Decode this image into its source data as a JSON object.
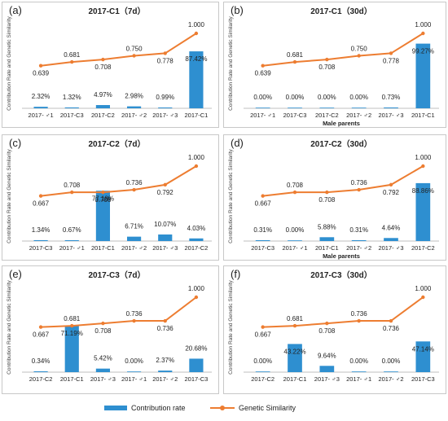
{
  "colors": {
    "bar": "#2e8fd0",
    "line": "#ed7d31"
  },
  "legend": {
    "bar_label": "Contribution rate",
    "line_label": "Genetic Similarity"
  },
  "chart_data": [
    {
      "panel": "(a)",
      "title": "2017-C1（7d）",
      "type": "bar+line",
      "ylabel": "Contribution Rate and Genetic Similarity",
      "xlabel": "",
      "categories": [
        "2017- ♂1",
        "2017-C3",
        "2017-C2",
        "2017- ♂2",
        "2017- ♂3",
        "2017-C1"
      ],
      "series": [
        {
          "name": "Contribution rate",
          "type": "bar",
          "values": [
            2.32,
            1.32,
            4.97,
            2.98,
            0.99,
            87.42
          ],
          "labels": [
            "2.32%",
            "1.32%",
            "4.97%",
            "2.98%",
            "0.99%",
            "87.42%"
          ]
        },
        {
          "name": "Genetic Similarity",
          "type": "line",
          "values": [
            0.639,
            0.681,
            0.708,
            0.75,
            0.778,
            1.0
          ],
          "labels": [
            "0.639",
            "0.681",
            "0.708",
            "0.750",
            "0.778",
            "1.000"
          ]
        }
      ]
    },
    {
      "panel": "(b)",
      "title": "2017-C1（30d）",
      "type": "bar+line",
      "ylabel": "Contribution Rate and Genetic Similarity",
      "xlabel": "Male parents",
      "categories": [
        "2017- ♂1",
        "2017-C3",
        "2017-C2",
        "2017- ♂2",
        "2017- ♂3",
        "2017-C1"
      ],
      "series": [
        {
          "name": "Contribution rate",
          "type": "bar",
          "values": [
            0.0,
            0.0,
            0.0,
            0.0,
            0.73,
            99.27
          ],
          "labels": [
            "0.00%",
            "0.00%",
            "0.00%",
            "0.00%",
            "0.73%",
            "99.27%"
          ]
        },
        {
          "name": "Genetic Similarity",
          "type": "line",
          "values": [
            0.639,
            0.681,
            0.708,
            0.75,
            0.778,
            1.0
          ],
          "labels": [
            "0.639",
            "0.681",
            "0.708",
            "0.750",
            "0.778",
            "1.000"
          ]
        }
      ]
    },
    {
      "panel": "(c)",
      "title": "2017-C2（7d）",
      "type": "bar+line",
      "ylabel": "Contribution Rate and Genetic Similarity",
      "xlabel": "",
      "categories": [
        "2017-C3",
        "2017- ♂1",
        "2017-C1",
        "2017- ♂2",
        "2017- ♂3",
        "2017-C2"
      ],
      "series": [
        {
          "name": "Contribution rate",
          "type": "bar",
          "values": [
            1.34,
            0.67,
            77.18,
            6.71,
            10.07,
            4.03
          ],
          "labels": [
            "1.34%",
            "0.67%",
            "77.18%",
            "6.71%",
            "10.07%",
            "4.03%"
          ]
        },
        {
          "name": "Genetic Similarity",
          "type": "line",
          "values": [
            0.667,
            0.708,
            0.708,
            0.736,
            0.792,
            1.0
          ],
          "labels": [
            "0.667",
            "0.708",
            "0.708",
            "0.736",
            "0.792",
            "1.000"
          ]
        }
      ]
    },
    {
      "panel": "(d)",
      "title": "2017-C2（30d）",
      "type": "bar+line",
      "ylabel": "Contribution Rate and Genetic Similarity",
      "xlabel": "Male parents",
      "categories": [
        "2017-C3",
        "2017- ♂1",
        "2017-C1",
        "2017- ♂2",
        "2017- ♂3",
        "2017-C2"
      ],
      "series": [
        {
          "name": "Contribution rate",
          "type": "bar",
          "values": [
            0.31,
            0.0,
            5.88,
            0.31,
            4.64,
            88.86
          ],
          "labels": [
            "0.31%",
            "0.00%",
            "5.88%",
            "0.31%",
            "4.64%",
            "88.86%"
          ]
        },
        {
          "name": "Genetic Similarity",
          "type": "line",
          "values": [
            0.667,
            0.708,
            0.708,
            0.736,
            0.792,
            1.0
          ],
          "labels": [
            "0.667",
            "0.708",
            "0.708",
            "0.736",
            "0.792",
            "1.000"
          ]
        }
      ]
    },
    {
      "panel": "(e)",
      "title": "2017-C3（7d）",
      "type": "bar+line",
      "ylabel": "Contribution Rate and Genetic Similarity",
      "xlabel": "",
      "categories": [
        "2017-C2",
        "2017-C1",
        "2017- ♂3",
        "2017- ♂1",
        "2017- ♂2",
        "2017-C3"
      ],
      "series": [
        {
          "name": "Contribution rate",
          "type": "bar",
          "values": [
            0.34,
            71.19,
            5.42,
            0.0,
            2.37,
            20.68
          ],
          "labels": [
            "0.34%",
            "71.19%",
            "5.42%",
            "0.00%",
            "2.37%",
            "20.68%"
          ]
        },
        {
          "name": "Genetic Similarity",
          "type": "line",
          "values": [
            0.667,
            0.681,
            0.708,
            0.736,
            0.736,
            1.0
          ],
          "labels": [
            "0.667",
            "0.681",
            "0.708",
            "0.736",
            "0.736",
            "1.000"
          ]
        }
      ]
    },
    {
      "panel": "(f)",
      "title": "2017-C3（30d）",
      "type": "bar+line",
      "ylabel": "Contribution Rate and Genetic Similarity",
      "xlabel": "",
      "categories": [
        "2017-C2",
        "2017-C1",
        "2017- ♂3",
        "2017- ♂1",
        "2017- ♂2",
        "2017-C3"
      ],
      "series": [
        {
          "name": "Contribution rate",
          "type": "bar",
          "values": [
            0.0,
            43.22,
            9.64,
            0.0,
            0.0,
            47.14
          ],
          "labels": [
            "0.00%",
            "43.22%",
            "9.64%",
            "0.00%",
            "0.00%",
            "47.14%"
          ]
        },
        {
          "name": "Genetic Similarity",
          "type": "line",
          "values": [
            0.667,
            0.681,
            0.708,
            0.736,
            0.736,
            1.0
          ],
          "labels": [
            "0.667",
            "0.681",
            "0.708",
            "0.736",
            "0.736",
            "1.000"
          ]
        }
      ]
    }
  ]
}
